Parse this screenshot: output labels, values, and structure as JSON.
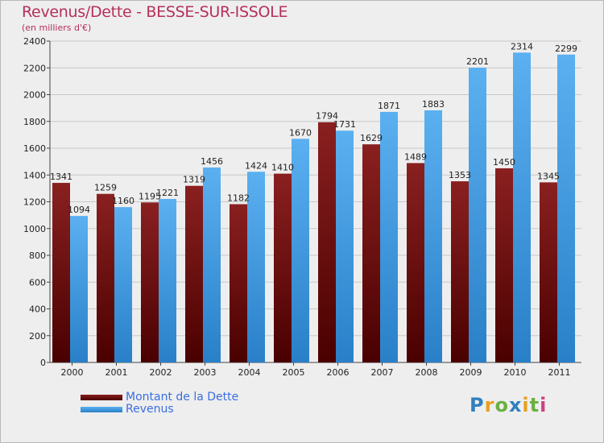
{
  "title": "Revenus/Dette - BESSE-SUR-ISSOLE",
  "subtitle": "(en milliers d'€)",
  "logo": [
    "P",
    "r",
    "o",
    "x",
    "i",
    "t",
    "i"
  ],
  "logo_colors": [
    "#2f80c0",
    "#e8a020",
    "#6ab040",
    "#2f80c0",
    "#e8a020",
    "#6ab040",
    "#d04080"
  ],
  "chart_data": {
    "type": "bar",
    "categories": [
      "2000",
      "2001",
      "2002",
      "2003",
      "2004",
      "2005",
      "2006",
      "2007",
      "2008",
      "2009",
      "2010",
      "2011"
    ],
    "series": [
      {
        "name": "Montant de la Dette",
        "color": "#7a1c1c",
        "values": [
          1341,
          1259,
          1195,
          1319,
          1182,
          1410,
          1794,
          1629,
          1489,
          1353,
          1450,
          1345
        ]
      },
      {
        "name": "Revenus",
        "color": "#4aa3e8",
        "values": [
          1094,
          1160,
          1221,
          1456,
          1424,
          1670,
          1731,
          1871,
          1883,
          2201,
          2314,
          2299
        ]
      }
    ],
    "yticks": [
      0,
      200,
      400,
      600,
      800,
      1000,
      1200,
      1400,
      1600,
      1800,
      2000,
      2200,
      2400
    ],
    "ylim": [
      0,
      2400
    ],
    "grid": true,
    "legend": "bottom-left"
  }
}
